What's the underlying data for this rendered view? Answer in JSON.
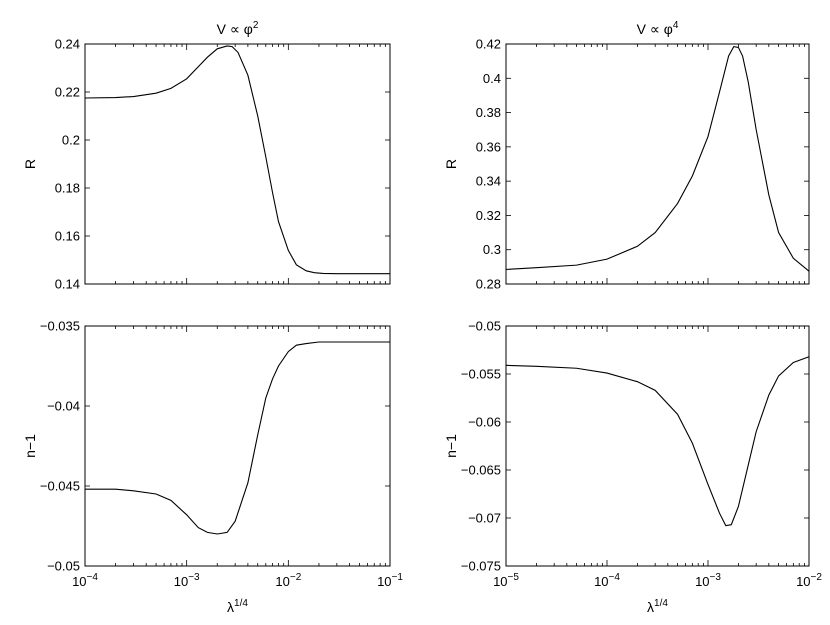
{
  "chart_data": [
    {
      "type": "line",
      "title_base": "V ∝ φ",
      "title_exp": "2",
      "ylabel": "R",
      "xlabel_base": "",
      "xlabel_exp": "",
      "xscale": "log",
      "xlim": [
        0.0001,
        0.1
      ],
      "ylim": [
        0.14,
        0.24
      ],
      "x_ticks": [
        {
          "base": "10",
          "exp": "-4"
        },
        {
          "base": "10",
          "exp": "-3"
        },
        {
          "base": "10",
          "exp": "-2"
        },
        {
          "base": "10",
          "exp": "-1"
        }
      ],
      "x_tick_values": [
        0.0001,
        0.001,
        0.01,
        0.1
      ],
      "x_tick_labels_shown": false,
      "y_ticks": [
        "0.14",
        "0.16",
        "0.18",
        "0.2",
        "0.22",
        "0.24"
      ],
      "grid": false,
      "series": [
        {
          "x": [
            0.0001,
            0.0002,
            0.0003,
            0.0005,
            0.0007,
            0.001,
            0.0013,
            0.0016,
            0.002,
            0.0025,
            0.0028,
            0.0032,
            0.004,
            0.005,
            0.006,
            0.007,
            0.008,
            0.01,
            0.012,
            0.015,
            0.018,
            0.022,
            0.03,
            0.05,
            0.1
          ],
          "y": [
            0.2175,
            0.2177,
            0.2181,
            0.2195,
            0.2215,
            0.2255,
            0.2305,
            0.2345,
            0.238,
            0.2392,
            0.2389,
            0.2365,
            0.227,
            0.21,
            0.193,
            0.178,
            0.166,
            0.154,
            0.148,
            0.1455,
            0.1447,
            0.1444,
            0.1443,
            0.1443,
            0.1443
          ]
        }
      ]
    },
    {
      "type": "line",
      "title_base": "V ∝ φ",
      "title_exp": "4",
      "ylabel": "R",
      "xlabel_base": "",
      "xlabel_exp": "",
      "xscale": "log",
      "xlim": [
        1e-05,
        0.01
      ],
      "ylim": [
        0.28,
        0.42
      ],
      "x_ticks": [
        {
          "base": "10",
          "exp": "-5"
        },
        {
          "base": "10",
          "exp": "-4"
        },
        {
          "base": "10",
          "exp": "-3"
        },
        {
          "base": "10",
          "exp": "-2"
        }
      ],
      "x_tick_values": [
        1e-05,
        0.0001,
        0.001,
        0.01
      ],
      "x_tick_labels_shown": false,
      "y_ticks": [
        "0.28",
        "0.3",
        "0.32",
        "0.34",
        "0.36",
        "0.38",
        "0.4",
        "0.42"
      ],
      "grid": false,
      "series": [
        {
          "x": [
            1e-05,
            2e-05,
            5e-05,
            0.0001,
            0.0002,
            0.0003,
            0.0005,
            0.0007,
            0.001,
            0.0013,
            0.0016,
            0.0018,
            0.002,
            0.0022,
            0.0025,
            0.003,
            0.004,
            0.005,
            0.007,
            0.01
          ],
          "y": [
            0.2885,
            0.2895,
            0.291,
            0.2945,
            0.302,
            0.31,
            0.327,
            0.343,
            0.366,
            0.392,
            0.413,
            0.4185,
            0.418,
            0.413,
            0.398,
            0.37,
            0.332,
            0.31,
            0.295,
            0.2875
          ]
        }
      ]
    },
    {
      "type": "line",
      "title_base": "",
      "title_exp": "",
      "ylabel": "n−1",
      "xlabel_base": "λ",
      "xlabel_exp": "1/4",
      "xscale": "log",
      "xlim": [
        0.0001,
        0.1
      ],
      "ylim": [
        -0.05,
        -0.035
      ],
      "x_ticks": [
        {
          "base": "10",
          "exp": "−4"
        },
        {
          "base": "10",
          "exp": "−3"
        },
        {
          "base": "10",
          "exp": "−2"
        },
        {
          "base": "10",
          "exp": "−1"
        }
      ],
      "x_tick_values": [
        0.0001,
        0.001,
        0.01,
        0.1
      ],
      "x_tick_labels_shown": true,
      "y_ticks": [
        "−0.05",
        "−0.045",
        "−0.04",
        "−0.035"
      ],
      "grid": false,
      "series": [
        {
          "x": [
            0.0001,
            0.0002,
            0.0003,
            0.0005,
            0.0007,
            0.001,
            0.0013,
            0.0016,
            0.002,
            0.0025,
            0.003,
            0.004,
            0.005,
            0.006,
            0.007,
            0.008,
            0.01,
            0.012,
            0.015,
            0.02,
            0.03,
            0.05,
            0.1
          ],
          "y": [
            -0.0452,
            -0.0452,
            -0.0453,
            -0.0455,
            -0.0459,
            -0.0468,
            -0.0476,
            -0.0479,
            -0.048,
            -0.0479,
            -0.0472,
            -0.0448,
            -0.0418,
            -0.0395,
            -0.0383,
            -0.0375,
            -0.0366,
            -0.0362,
            -0.0361,
            -0.036,
            -0.036,
            -0.036,
            -0.036
          ]
        }
      ]
    },
    {
      "type": "line",
      "title_base": "",
      "title_exp": "",
      "ylabel": "n−1",
      "xlabel_base": "λ",
      "xlabel_exp": "1/4",
      "xscale": "log",
      "xlim": [
        1e-05,
        0.01
      ],
      "ylim": [
        -0.075,
        -0.05
      ],
      "x_ticks": [
        {
          "base": "10",
          "exp": "−5"
        },
        {
          "base": "10",
          "exp": "−4"
        },
        {
          "base": "10",
          "exp": "−3"
        },
        {
          "base": "10",
          "exp": "−2"
        }
      ],
      "x_tick_values": [
        1e-05,
        0.0001,
        0.001,
        0.01
      ],
      "x_tick_labels_shown": true,
      "y_ticks": [
        "−0.075",
        "−0.07",
        "−0.065",
        "−0.06",
        "−0.055",
        "−0.05"
      ],
      "grid": false,
      "series": [
        {
          "x": [
            1e-05,
            2e-05,
            5e-05,
            0.0001,
            0.0002,
            0.0003,
            0.0005,
            0.0007,
            0.001,
            0.0013,
            0.0015,
            0.0017,
            0.002,
            0.0025,
            0.003,
            0.004,
            0.005,
            0.007,
            0.01
          ],
          "y": [
            -0.0541,
            -0.0542,
            -0.0544,
            -0.0549,
            -0.0558,
            -0.0567,
            -0.0592,
            -0.0622,
            -0.0665,
            -0.0695,
            -0.0708,
            -0.0707,
            -0.0688,
            -0.0645,
            -0.061,
            -0.0572,
            -0.0552,
            -0.0538,
            -0.0532
          ]
        }
      ]
    }
  ]
}
